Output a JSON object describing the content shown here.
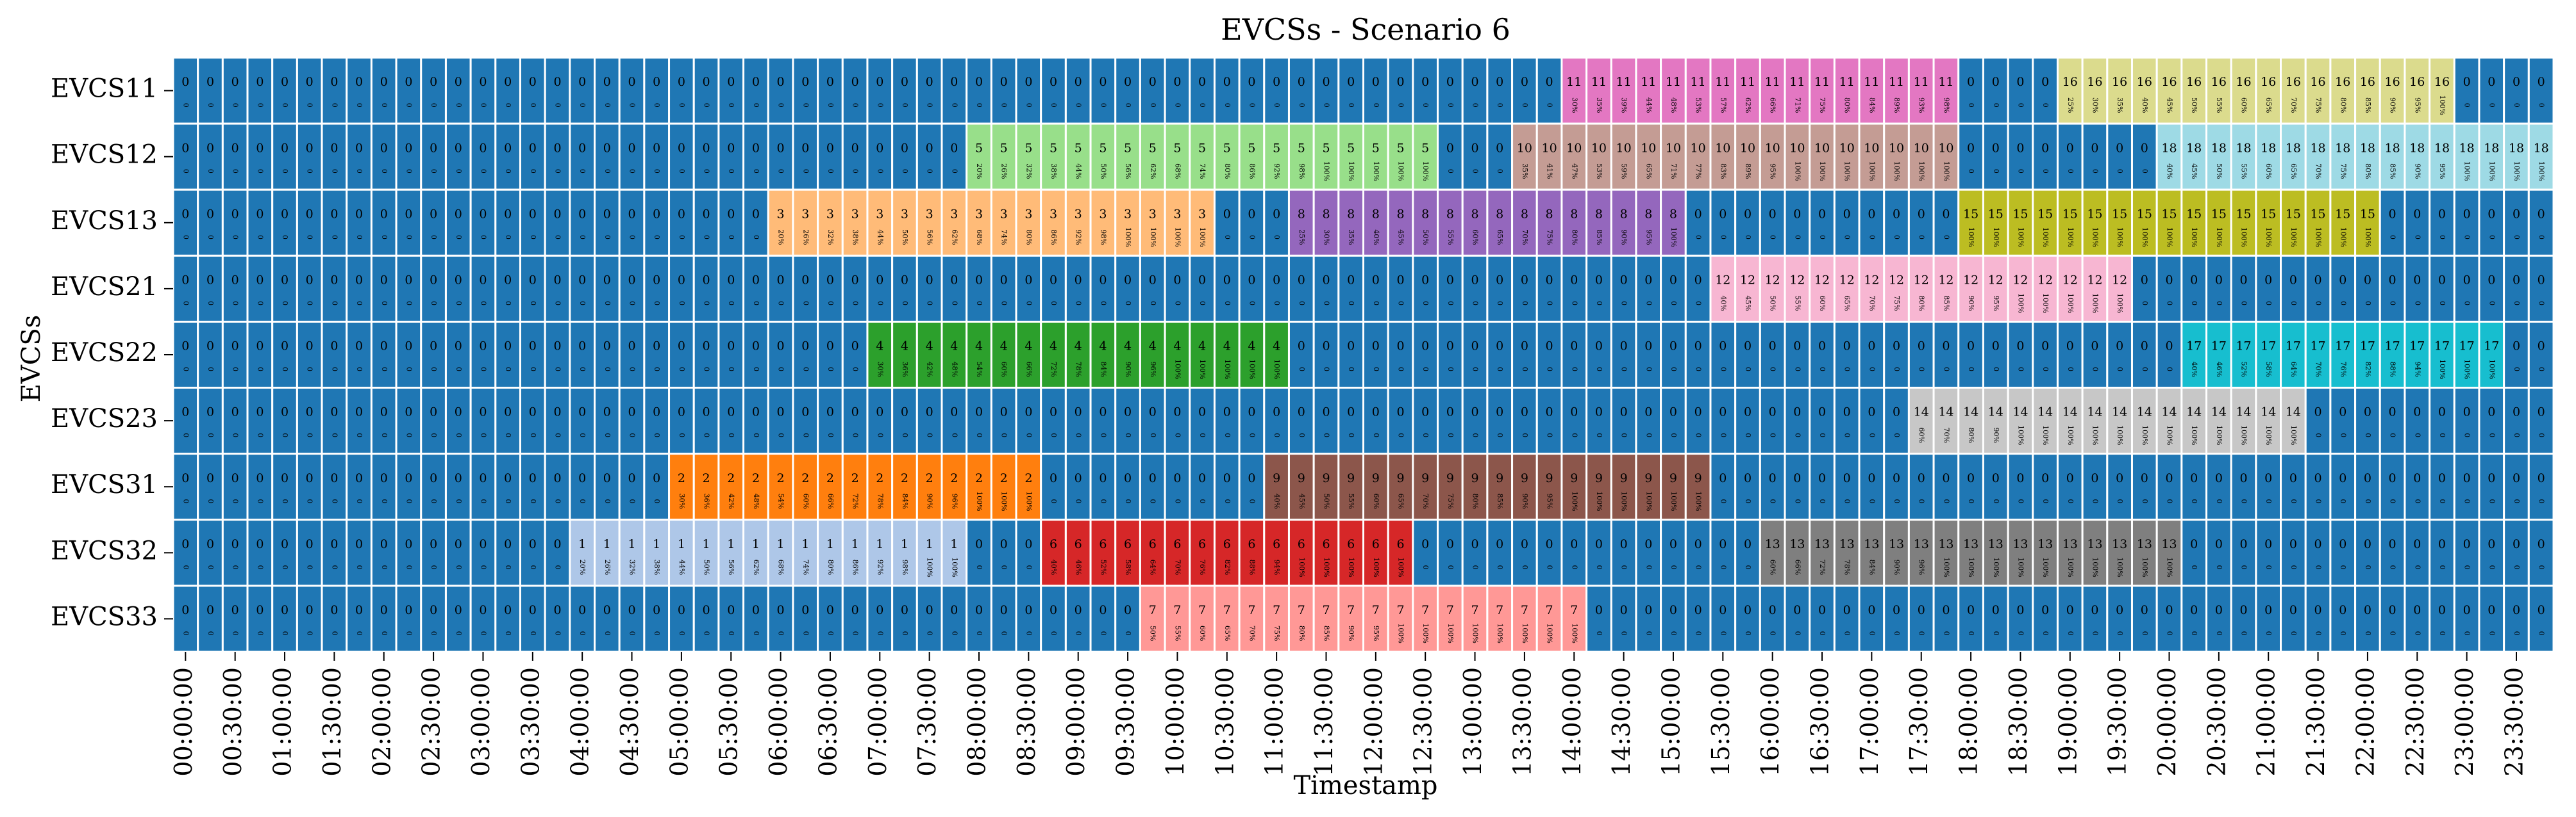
{
  "chart_data": {
    "type": "heatmap",
    "title": "EVCSs - Scenario 6",
    "xlabel": "Timestamp",
    "ylabel": "EVCSs",
    "rows": [
      "EVCS11",
      "EVCS12",
      "EVCS13",
      "EVCS21",
      "EVCS22",
      "EVCS23",
      "EVCS31",
      "EVCS32",
      "EVCS33"
    ],
    "x_ticks": [
      "00:00:00",
      "00:30:00",
      "01:00:00",
      "01:30:00",
      "02:00:00",
      "02:30:00",
      "03:00:00",
      "03:30:00",
      "04:00:00",
      "04:30:00",
      "05:00:00",
      "05:30:00",
      "06:00:00",
      "06:30:00",
      "07:00:00",
      "07:30:00",
      "08:00:00",
      "08:30:00",
      "09:00:00",
      "09:30:00",
      "10:00:00",
      "10:30:00",
      "11:00:00",
      "11:30:00",
      "12:00:00",
      "12:30:00",
      "13:00:00",
      "13:30:00",
      "14:00:00",
      "14:30:00",
      "15:00:00",
      "15:30:00",
      "16:00:00",
      "16:30:00",
      "17:00:00",
      "17:30:00",
      "18:00:00",
      "18:30:00",
      "19:00:00",
      "19:30:00",
      "20:00:00",
      "20:30:00",
      "21:00:00",
      "21:30:00",
      "22:00:00",
      "22:30:00",
      "23:00:00",
      "23:30:00"
    ],
    "intervals_per_tick": 2,
    "n_intervals": 96,
    "cell_annotation_format": "EV id with state of charge (%) beneath",
    "empty_value": 0,
    "grid": false,
    "sessions": [
      {
        "row": "EVCS11",
        "ev": 11,
        "start": 56,
        "soc": [
          30,
          35,
          39,
          44,
          48,
          53,
          57,
          62,
          66,
          71,
          75,
          80,
          84,
          89,
          93,
          98
        ]
      },
      {
        "row": "EVCS11",
        "ev": 16,
        "start": 76,
        "soc": [
          25,
          30,
          35,
          40,
          45,
          50,
          55,
          60,
          65,
          70,
          75,
          80,
          85,
          90,
          95,
          100
        ]
      },
      {
        "row": "EVCS12",
        "ev": 5,
        "start": 32,
        "soc": [
          20,
          26,
          32,
          38,
          44,
          50,
          56,
          62,
          68,
          74,
          80,
          86,
          92,
          98,
          100,
          100,
          100,
          100,
          100
        ]
      },
      {
        "row": "EVCS12",
        "ev": 10,
        "start": 54,
        "soc": [
          35,
          41,
          47,
          53,
          59,
          65,
          71,
          77,
          83,
          89,
          95,
          100,
          100,
          100,
          100,
          100,
          100,
          100
        ]
      },
      {
        "row": "EVCS12",
        "ev": 18,
        "start": 80,
        "soc": [
          40,
          45,
          50,
          55,
          60,
          65,
          70,
          75,
          80,
          85,
          90,
          95,
          100,
          100,
          100,
          100
        ]
      },
      {
        "row": "EVCS13",
        "ev": 3,
        "start": 24,
        "soc": [
          20,
          26,
          32,
          38,
          44,
          50,
          56,
          62,
          68,
          74,
          80,
          86,
          92,
          98,
          100,
          100,
          100,
          100
        ]
      },
      {
        "row": "EVCS13",
        "ev": 8,
        "start": 45,
        "soc": [
          25,
          30,
          35,
          40,
          45,
          50,
          55,
          60,
          65,
          70,
          75,
          80,
          85,
          90,
          95,
          100
        ]
      },
      {
        "row": "EVCS13",
        "ev": 15,
        "start": 72,
        "soc": [
          100,
          100,
          100,
          100,
          100,
          100,
          100,
          100,
          100,
          100,
          100,
          100,
          100,
          100,
          100,
          100,
          100
        ]
      },
      {
        "row": "EVCS21",
        "ev": 12,
        "start": 62,
        "soc": [
          40,
          45,
          50,
          55,
          60,
          65,
          70,
          75,
          80,
          85,
          90,
          95,
          100,
          100,
          100,
          100,
          100
        ]
      },
      {
        "row": "EVCS22",
        "ev": 4,
        "start": 28,
        "soc": [
          30,
          36,
          42,
          48,
          54,
          60,
          66,
          72,
          78,
          84,
          90,
          96,
          100,
          100,
          100,
          100,
          100
        ]
      },
      {
        "row": "EVCS22",
        "ev": 17,
        "start": 81,
        "soc": [
          40,
          46,
          52,
          58,
          64,
          70,
          76,
          82,
          88,
          94,
          100,
          100,
          100
        ]
      },
      {
        "row": "EVCS23",
        "ev": 14,
        "start": 70,
        "soc": [
          60,
          70,
          80,
          90,
          100,
          100,
          100,
          100,
          100,
          100,
          100,
          100,
          100,
          100,
          100,
          100
        ]
      },
      {
        "row": "EVCS31",
        "ev": 2,
        "start": 20,
        "soc": [
          30,
          36,
          42,
          48,
          54,
          60,
          66,
          72,
          78,
          84,
          90,
          96,
          100,
          100,
          100
        ]
      },
      {
        "row": "EVCS31",
        "ev": 9,
        "start": 44,
        "soc": [
          40,
          45,
          50,
          55,
          60,
          65,
          70,
          75,
          80,
          85,
          90,
          95,
          100,
          100,
          100,
          100,
          100,
          100
        ]
      },
      {
        "row": "EVCS32",
        "ev": 1,
        "start": 16,
        "soc": [
          20,
          26,
          32,
          38,
          44,
          50,
          56,
          62,
          68,
          74,
          80,
          86,
          92,
          98,
          100,
          100
        ]
      },
      {
        "row": "EVCS32",
        "ev": 6,
        "start": 35,
        "soc": [
          40,
          46,
          52,
          58,
          64,
          70,
          76,
          82,
          88,
          94,
          100,
          100,
          100,
          100,
          100
        ]
      },
      {
        "row": "EVCS32",
        "ev": 13,
        "start": 64,
        "soc": [
          60,
          66,
          72,
          78,
          84,
          90,
          96,
          100,
          100,
          100,
          100,
          100,
          100,
          100,
          100,
          100,
          100
        ]
      },
      {
        "row": "EVCS33",
        "ev": 7,
        "start": 39,
        "soc": [
          50,
          55,
          60,
          65,
          70,
          75,
          80,
          85,
          90,
          95,
          100,
          100,
          100,
          100,
          100,
          100,
          100,
          100
        ]
      }
    ],
    "colors": {
      "0": "#1f77b4",
      "1": "#aec7e8",
      "2": "#ff7f0e",
      "3": "#ffbb78",
      "4": "#2ca02c",
      "5": "#98df8a",
      "6": "#d62728",
      "7": "#ff9896",
      "8": "#9467bd",
      "9": "#8c564b",
      "10": "#c49c94",
      "11": "#e377c2",
      "12": "#f7b6d2",
      "13": "#7f7f7f",
      "14": "#c7c7c7",
      "15": "#bcbd22",
      "16": "#dbdb8d",
      "17": "#17becf",
      "18": "#9edae5"
    }
  }
}
